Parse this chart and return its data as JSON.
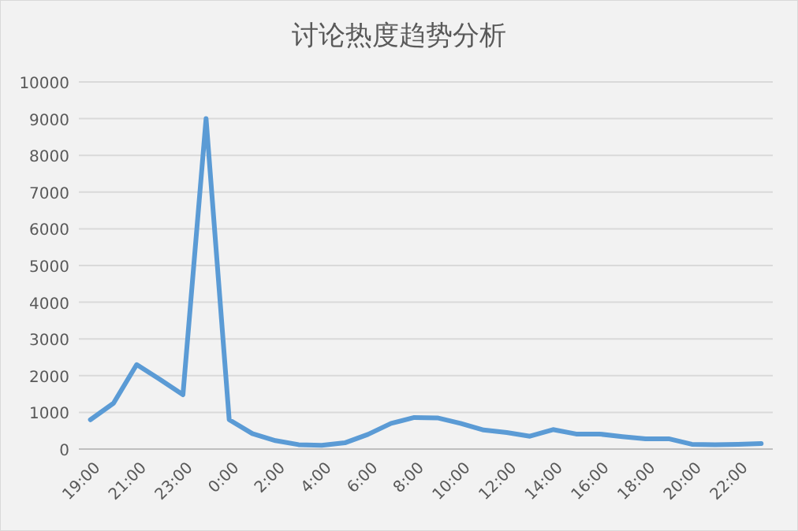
{
  "chart_data": {
    "type": "line",
    "title": "讨论热度趋势分析",
    "categories": [
      "19:00",
      null,
      "21:00",
      null,
      "23:00",
      null,
      "0:00",
      null,
      "2:00",
      null,
      "4:00",
      null,
      "6:00",
      null,
      "8:00",
      null,
      "10:00",
      null,
      "12:00",
      null,
      "14:00",
      null,
      "16:00",
      null,
      "18:00",
      null,
      "20:00",
      null,
      "22:00",
      null
    ],
    "series": [
      {
        "color": "#5b9bd5",
        "values": [
          800,
          1250,
          2300,
          1900,
          1480,
          9000,
          800,
          420,
          230,
          120,
          100,
          170,
          400,
          700,
          860,
          850,
          700,
          520,
          450,
          350,
          530,
          410,
          410,
          340,
          280,
          280,
          130,
          120,
          130,
          150
        ]
      }
    ],
    "ylim": [
      0,
      10000
    ],
    "yticks": [
      0,
      1000,
      2000,
      3000,
      4000,
      5000,
      6000,
      7000,
      8000,
      9000,
      10000
    ],
    "grid": "y",
    "marker": "none",
    "line_style": "solid"
  }
}
